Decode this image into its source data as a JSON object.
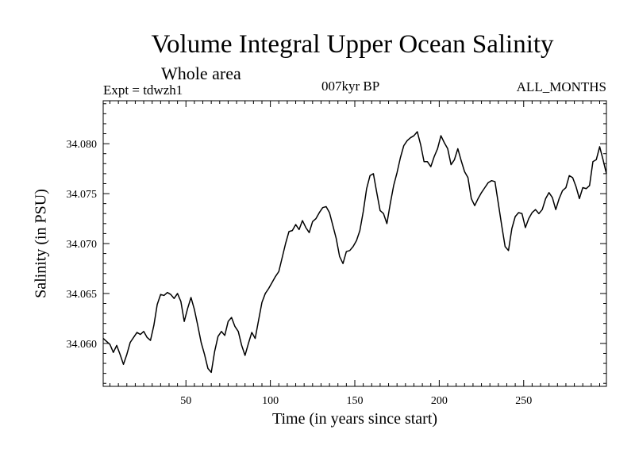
{
  "chart_data": {
    "type": "line",
    "title": "Volume Integral Upper Ocean Salinity",
    "subtitle": "Whole area",
    "experiment_label": "Expt = tdwzh1",
    "period_label": "007kyr BP",
    "months_label": "ALL_MONTHS",
    "xlabel": "Time (in years since start)",
    "ylabel": "Salinity (in PSU)",
    "xlim": [
      1,
      299
    ],
    "ylim": [
      34.0557,
      34.0843
    ],
    "xticks": [
      50,
      100,
      150,
      200,
      250
    ],
    "xtick_labels": [
      "50",
      "100",
      "150",
      "200",
      "250"
    ],
    "yticks": [
      34.06,
      34.065,
      34.07,
      34.075,
      34.08
    ],
    "ytick_labels": [
      "34.060",
      "34.065",
      "34.070",
      "34.075",
      "34.080"
    ],
    "series": [
      {
        "name": "Salinity",
        "color": "#000000",
        "x": [
          1,
          3,
          5,
          7,
          9,
          11,
          13,
          15,
          17,
          19,
          21,
          23,
          25,
          27,
          29,
          31,
          33,
          35,
          37,
          39,
          41,
          43,
          45,
          47,
          49,
          51,
          53,
          55,
          57,
          59,
          61,
          63,
          65,
          67,
          69,
          71,
          73,
          75,
          77,
          79,
          81,
          83,
          85,
          87,
          89,
          91,
          93,
          95,
          97,
          99,
          101,
          103,
          105,
          107,
          109,
          111,
          113,
          115,
          117,
          119,
          121,
          123,
          125,
          127,
          129,
          131,
          133,
          135,
          137,
          139,
          141,
          143,
          145,
          147,
          149,
          151,
          153,
          155,
          157,
          159,
          161,
          163,
          165,
          167,
          169,
          171,
          173,
          175,
          177,
          179,
          181,
          183,
          185,
          187,
          189,
          191,
          193,
          195,
          197,
          199,
          201,
          203,
          205,
          207,
          209,
          211,
          213,
          215,
          217,
          219,
          221,
          223,
          225,
          227,
          229,
          231,
          233,
          235,
          237,
          239,
          241,
          243,
          245,
          247,
          249,
          251,
          253,
          255,
          257,
          259,
          261,
          263,
          265,
          267,
          269,
          271,
          273,
          275,
          277,
          279,
          281,
          283,
          285,
          287,
          289,
          291,
          293,
          295,
          297,
          299
        ],
        "values": [
          34.0605,
          34.0602,
          34.0599,
          34.0591,
          34.0598,
          34.0589,
          34.0579,
          34.0589,
          34.0601,
          34.0606,
          34.0611,
          34.0609,
          34.0612,
          34.0606,
          34.0603,
          34.0618,
          34.0639,
          34.0649,
          34.0648,
          34.0651,
          34.0649,
          34.0645,
          34.065,
          34.0642,
          34.0622,
          34.0635,
          34.0646,
          34.0634,
          34.0618,
          34.0601,
          34.0589,
          34.0575,
          34.0571,
          34.0592,
          34.0607,
          34.0612,
          34.0608,
          34.0622,
          34.0626,
          34.0617,
          34.0612,
          34.0598,
          34.0588,
          34.06,
          34.0611,
          34.0605,
          34.0623,
          34.0641,
          34.065,
          34.0655,
          34.0661,
          34.0667,
          34.0672,
          34.0686,
          34.07,
          34.0712,
          34.0713,
          34.0719,
          34.0714,
          34.0723,
          34.0716,
          34.0711,
          34.0722,
          34.0725,
          34.0731,
          34.0736,
          34.0737,
          34.0731,
          34.0718,
          34.0705,
          34.0687,
          34.068,
          34.0692,
          34.0693,
          34.0697,
          34.0703,
          34.0713,
          34.0732,
          34.0755,
          34.0768,
          34.077,
          34.0751,
          34.0733,
          34.073,
          34.072,
          34.074,
          34.0758,
          34.0771,
          34.0786,
          34.0798,
          34.0803,
          34.0806,
          34.0808,
          34.0812,
          34.0799,
          34.0782,
          34.0782,
          34.0777,
          34.0787,
          34.0795,
          34.0808,
          34.0801,
          34.0795,
          34.0779,
          34.0784,
          34.0795,
          34.0783,
          34.0772,
          34.0766,
          34.0745,
          34.0738,
          34.0745,
          34.0751,
          34.0756,
          34.0761,
          34.0763,
          34.0762,
          34.074,
          34.0718,
          34.0697,
          34.0693,
          34.0715,
          34.0727,
          34.0731,
          34.073,
          34.0716,
          34.0725,
          34.0731,
          34.0734,
          34.073,
          34.0734,
          34.0745,
          34.0751,
          34.0746,
          34.0734,
          34.0745,
          34.0753,
          34.0756,
          34.0768,
          34.0766,
          34.0757,
          34.0745,
          34.0756,
          34.0755,
          34.0758,
          34.0782,
          34.0784,
          34.0797,
          34.0784,
          34.077
        ]
      }
    ]
  }
}
